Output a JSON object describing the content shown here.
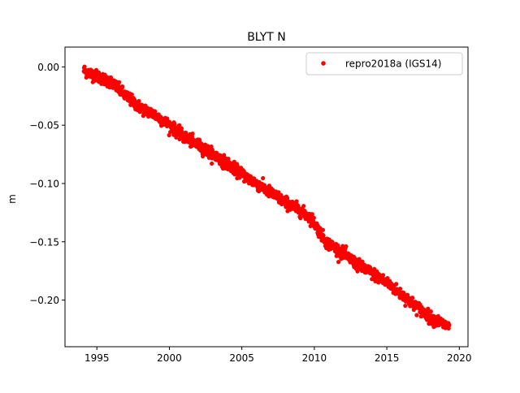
{
  "chart_data": {
    "type": "scatter",
    "title": "BLYT N",
    "xlabel": "",
    "ylabel": "m",
    "xlim": [
      1992.8,
      2020.6
    ],
    "ylim": [
      -0.24,
      0.017
    ],
    "x_ticks": [
      1995,
      2000,
      2005,
      2010,
      2015,
      2020
    ],
    "x_tick_labels": [
      "1995",
      "2000",
      "2005",
      "2010",
      "2015",
      "2020"
    ],
    "y_ticks": [
      0.0,
      -0.05,
      -0.1,
      -0.15,
      -0.2
    ],
    "y_tick_labels": [
      "0.00",
      "−0.05",
      "−0.10",
      "−0.15",
      "−0.20"
    ],
    "grid": false,
    "legend": {
      "position": "top-right"
    },
    "series": [
      {
        "name": "repro2018a (IGS14)",
        "color": "#ff0000",
        "marker": "circle",
        "trend_points": [
          {
            "x": 1994.1,
            "y": -0.003
          },
          {
            "x": 1995.0,
            "y": -0.008
          },
          {
            "x": 1996.0,
            "y": -0.013
          },
          {
            "x": 1997.0,
            "y": -0.025
          },
          {
            "x": 1998.0,
            "y": -0.035
          },
          {
            "x": 1999.0,
            "y": -0.041
          },
          {
            "x": 2000.0,
            "y": -0.05
          },
          {
            "x": 2001.0,
            "y": -0.06
          },
          {
            "x": 2002.0,
            "y": -0.067
          },
          {
            "x": 2003.0,
            "y": -0.075
          },
          {
            "x": 2004.0,
            "y": -0.083
          },
          {
            "x": 2005.0,
            "y": -0.092
          },
          {
            "x": 2006.0,
            "y": -0.1
          },
          {
            "x": 2007.0,
            "y": -0.108
          },
          {
            "x": 2008.0,
            "y": -0.116
          },
          {
            "x": 2009.0,
            "y": -0.123
          },
          {
            "x": 2009.8,
            "y": -0.13
          },
          {
            "x": 2010.3,
            "y": -0.14
          },
          {
            "x": 2010.8,
            "y": -0.15
          },
          {
            "x": 2012.0,
            "y": -0.16
          },
          {
            "x": 2013.0,
            "y": -0.17
          },
          {
            "x": 2014.0,
            "y": -0.177
          },
          {
            "x": 2015.0,
            "y": -0.185
          },
          {
            "x": 2016.0,
            "y": -0.195
          },
          {
            "x": 2017.0,
            "y": -0.205
          },
          {
            "x": 2018.0,
            "y": -0.215
          },
          {
            "x": 2019.3,
            "y": -0.223
          }
        ],
        "scatter_sd": 0.0025
      }
    ]
  }
}
